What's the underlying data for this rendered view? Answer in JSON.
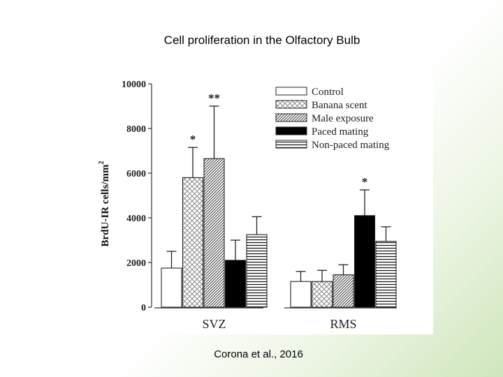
{
  "slide": {
    "title": "Cell proliferation in the Olfactory Bulb",
    "citation": "Corona et al., 2016"
  },
  "chart_data": {
    "type": "bar",
    "categories": [
      "SVZ",
      "RMS"
    ],
    "ylabel": "BrdU-IR cells/mm",
    "ylabel_superscript": "2",
    "ylim": [
      0,
      10000
    ],
    "yticks": [
      0,
      2000,
      4000,
      6000,
      8000,
      10000
    ],
    "ytick_labels": [
      "0",
      "2000",
      "4000",
      "6000",
      "8000",
      "10000"
    ],
    "legend_position": "top-right",
    "series": [
      {
        "name": "Control",
        "pattern": "none",
        "values": [
          1750,
          1150
        ],
        "errors": [
          750,
          450
        ],
        "sig": [
          "",
          ""
        ]
      },
      {
        "name": "Banana scent",
        "pattern": "crosshatch",
        "values": [
          5800,
          1150
        ],
        "errors": [
          1350,
          500
        ],
        "sig": [
          "*",
          ""
        ]
      },
      {
        "name": "Male exposure",
        "pattern": "diagonal",
        "values": [
          6650,
          1450
        ],
        "errors": [
          2350,
          450
        ],
        "sig": [
          "**",
          ""
        ]
      },
      {
        "name": "Paced mating",
        "pattern": "solid-black",
        "values": [
          2100,
          4100
        ],
        "errors": [
          900,
          1150
        ],
        "sig": [
          "",
          "*"
        ]
      },
      {
        "name": "Non-paced mating",
        "pattern": "horizontal",
        "values": [
          3250,
          2950
        ],
        "errors": [
          800,
          650
        ],
        "sig": [
          "",
          ""
        ]
      }
    ]
  }
}
